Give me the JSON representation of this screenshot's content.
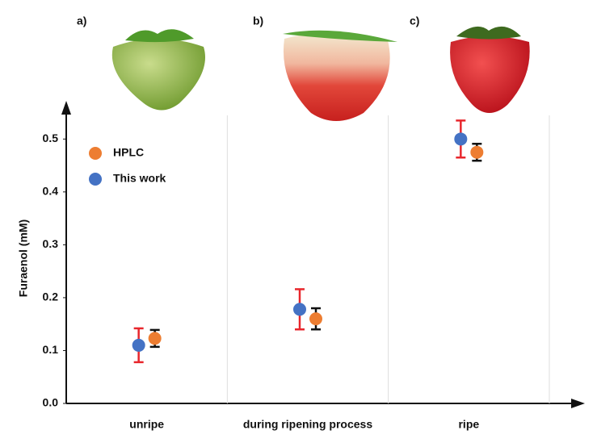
{
  "chart_data": {
    "type": "scatter",
    "annotations": [
      "a)",
      "b)",
      "c)"
    ],
    "y_label": "Furaenol (mM)",
    "categories": [
      "unripe",
      "during ripening process",
      "ripe"
    ],
    "series": [
      {
        "name": "HPLC",
        "color": "#ed7d31",
        "error_color": "#111111",
        "values": [
          0.123,
          0.16,
          0.475
        ],
        "errors": [
          0.016,
          0.02,
          0.016
        ]
      },
      {
        "name": "This work",
        "color": "#4472c4",
        "error_color": "#e8262c",
        "values": [
          0.11,
          0.178,
          0.5
        ],
        "errors": [
          0.032,
          0.038,
          0.035
        ]
      }
    ],
    "ylim": [
      0,
      0.56
    ],
    "yticks": [
      {
        "value": 0,
        "label": "0.0"
      },
      0.1,
      0.2,
      0.3,
      0.4,
      0.5
    ],
    "grid": true,
    "legend": "upper left"
  }
}
